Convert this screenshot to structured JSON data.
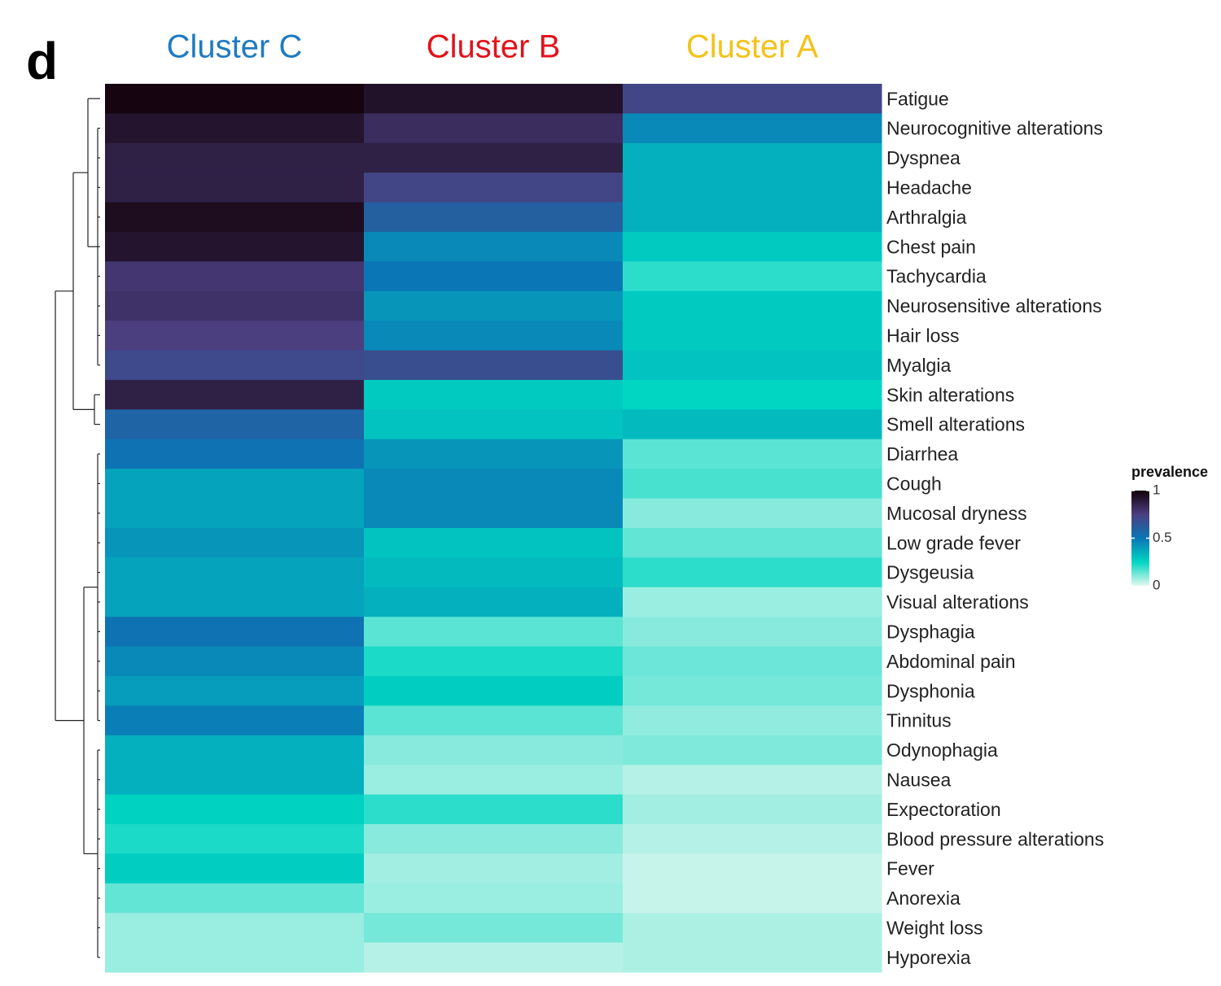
{
  "chart_data": {
    "type": "heatmap",
    "panel_label": "d",
    "x": [
      "Cluster C",
      "Cluster B",
      "Cluster A"
    ],
    "x_colors": [
      "#1f7bc1",
      "#e3121b",
      "#f4c21a"
    ],
    "y": [
      "Fatigue",
      "Neurocognitive alterations",
      "Dyspnea",
      "Headache",
      "Arthralgia",
      "Chest pain",
      "Tachycardia",
      "Neurosensitive alterations",
      "Hair loss",
      "Myalgia",
      "Skin alterations",
      "Smell alterations",
      "Diarrhea",
      "Cough",
      "Mucosal dryness",
      "Low grade fever",
      "Dysgeusia",
      "Visual alterations",
      "Dysphagia",
      "Abdominal pain",
      "Dysphonia",
      "Tinnitus",
      "Odynophagia",
      "Nausea",
      "Expectoration",
      "Blood pressure alterations",
      "Fever",
      "Anorexia",
      "Weight loss",
      "Hyporexia"
    ],
    "values": [
      [
        0.98,
        0.93,
        0.72
      ],
      [
        0.92,
        0.82,
        0.45
      ],
      [
        0.87,
        0.87,
        0.35
      ],
      [
        0.87,
        0.72,
        0.35
      ],
      [
        0.95,
        0.6,
        0.35
      ],
      [
        0.92,
        0.45,
        0.28
      ],
      [
        0.78,
        0.5,
        0.2
      ],
      [
        0.8,
        0.42,
        0.28
      ],
      [
        0.75,
        0.45,
        0.28
      ],
      [
        0.7,
        0.68,
        0.3
      ],
      [
        0.87,
        0.28,
        0.25
      ],
      [
        0.58,
        0.3,
        0.32
      ],
      [
        0.52,
        0.42,
        0.15
      ],
      [
        0.38,
        0.45,
        0.17
      ],
      [
        0.38,
        0.45,
        0.1
      ],
      [
        0.42,
        0.3,
        0.14
      ],
      [
        0.38,
        0.32,
        0.2
      ],
      [
        0.38,
        0.35,
        0.08
      ],
      [
        0.52,
        0.15,
        0.1
      ],
      [
        0.45,
        0.22,
        0.13
      ],
      [
        0.4,
        0.27,
        0.12
      ],
      [
        0.48,
        0.15,
        0.09
      ],
      [
        0.35,
        0.1,
        0.11
      ],
      [
        0.35,
        0.08,
        0.05
      ],
      [
        0.26,
        0.2,
        0.07
      ],
      [
        0.22,
        0.1,
        0.05
      ],
      [
        0.27,
        0.07,
        0.03
      ],
      [
        0.14,
        0.08,
        0.03
      ],
      [
        0.08,
        0.12,
        0.06
      ],
      [
        0.08,
        0.05,
        0.06
      ]
    ],
    "colorscale": [
      [
        0,
        "#e2f8ef"
      ],
      [
        0.25,
        "#00d6c2"
      ],
      [
        0.5,
        "#0a76b6"
      ],
      [
        0.75,
        "#4b3f80"
      ],
      [
        1,
        "#110007"
      ]
    ],
    "colorbar": {
      "title": "prevalence",
      "lim": [
        0,
        1
      ],
      "ticks": [
        0,
        0.5,
        1
      ]
    }
  }
}
